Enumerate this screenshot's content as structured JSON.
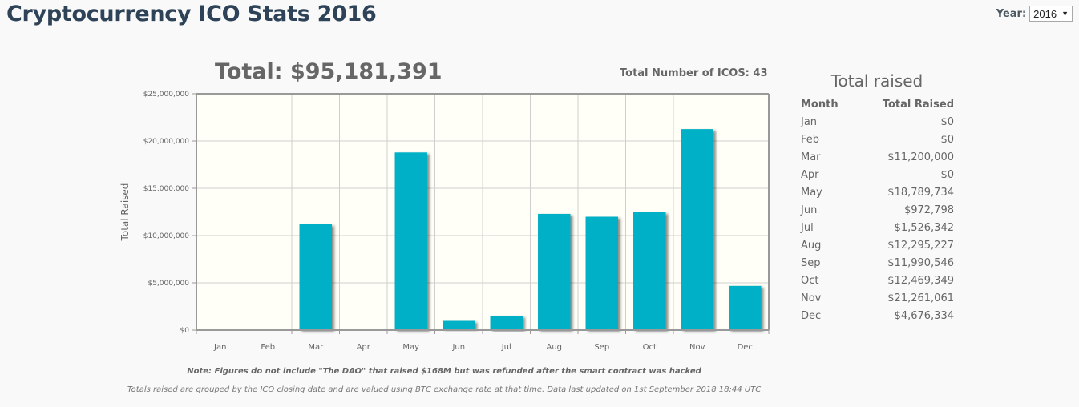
{
  "header": {
    "title": "Cryptocurrency ICO Stats 2016",
    "year_label": "Year:",
    "year_selected": "2016"
  },
  "summary": {
    "total_label": "Total: $95,181,391",
    "count_label": "Total Number of ICOS: 43"
  },
  "colors": {
    "bar": "#00b0c6",
    "plot_bg": "#fffff7",
    "title": "#2e4358"
  },
  "chart_data": {
    "type": "bar",
    "title": "Total: $95,181,391",
    "xlabel": "",
    "ylabel": "Total Raised",
    "ylim": [
      0,
      25000000
    ],
    "yticks": [
      0,
      5000000,
      10000000,
      15000000,
      20000000,
      25000000
    ],
    "ytick_labels": [
      "$0",
      "$5,000,000",
      "$10,000,000",
      "$15,000,000",
      "$20,000,000",
      "$25,000,000"
    ],
    "categories": [
      "Jan",
      "Feb",
      "Mar",
      "Apr",
      "May",
      "Jun",
      "Jul",
      "Aug",
      "Sep",
      "Oct",
      "Nov",
      "Dec"
    ],
    "values": [
      0,
      0,
      11200000,
      0,
      18789734,
      972798,
      1526342,
      12295227,
      11990546,
      12469349,
      21261061,
      4676334
    ],
    "grid": true,
    "legend": "none"
  },
  "notes": {
    "dao_note": "Note: Figures do not include \"The DAO\" that raised $168M but was refunded after the smart contract was hacked",
    "footnote": "Totals raised are grouped by the ICO closing date and are valued using BTC exchange rate at that time. Data last updated on 1st September 2018 18:44 UTC"
  },
  "side_table": {
    "title": "Total raised",
    "headers": [
      "Month",
      "Total Raised"
    ],
    "rows": [
      {
        "month": "Jan",
        "value": "$0"
      },
      {
        "month": "Feb",
        "value": "$0"
      },
      {
        "month": "Mar",
        "value": "$11,200,000"
      },
      {
        "month": "Apr",
        "value": "$0"
      },
      {
        "month": "May",
        "value": "$18,789,734"
      },
      {
        "month": "Jun",
        "value": "$972,798"
      },
      {
        "month": "Jul",
        "value": "$1,526,342"
      },
      {
        "month": "Aug",
        "value": "$12,295,227"
      },
      {
        "month": "Sep",
        "value": "$11,990,546"
      },
      {
        "month": "Oct",
        "value": "$12,469,349"
      },
      {
        "month": "Nov",
        "value": "$21,261,061"
      },
      {
        "month": "Dec",
        "value": "$4,676,334"
      }
    ]
  }
}
